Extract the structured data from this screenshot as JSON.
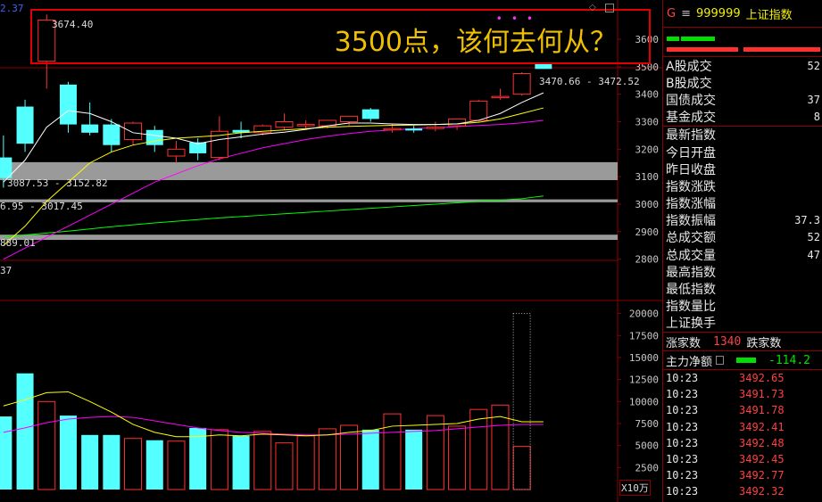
{
  "headline": "3500点，该何去何从？",
  "top_left_fragment": "2.37",
  "annotations": {
    "high_label": "3674.40",
    "price_range": "3470.66 - 3472.52",
    "band1": "3087.53 - 3152.82",
    "band2": "6.95 - 3017.45",
    "low_label": "889.01",
    "divider_fragment": "37",
    "volume_unit": "X10万"
  },
  "panel": {
    "g_label": "G",
    "menu_glyph": "≡",
    "code": "999999",
    "name": "上证指数",
    "stats": [
      {
        "label": "A股成交",
        "value": "52"
      },
      {
        "label": "B股成交",
        "value": ""
      },
      {
        "label": "国债成交",
        "value": "37"
      },
      {
        "label": "基金成交",
        "value": "8"
      }
    ],
    "stats2": [
      {
        "label": "最新指数",
        "value": ""
      },
      {
        "label": "今日开盘",
        "value": ""
      },
      {
        "label": "昨日收盘",
        "value": ""
      },
      {
        "label": "指数涨跌",
        "value": ""
      },
      {
        "label": "指数涨幅",
        "value": ""
      },
      {
        "label": "指数振幅",
        "value": "37.3"
      },
      {
        "label": "总成交额",
        "value": "52"
      },
      {
        "label": "总成交量",
        "value": "47"
      },
      {
        "label": "最高指数",
        "value": ""
      },
      {
        "label": "最低指数",
        "value": ""
      },
      {
        "label": "指数量比",
        "value": ""
      },
      {
        "label": "上证换手",
        "value": ""
      }
    ],
    "advancers_label": "涨家数",
    "advancers": "1340",
    "decliners_label": "跌家数",
    "main_flow_label": "主力净额",
    "main_flow": "-114.2",
    "ticks": [
      {
        "time": "10:23",
        "price": "3492.65"
      },
      {
        "time": "10:23",
        "price": "3491.73"
      },
      {
        "time": "10:23",
        "price": "3491.78"
      },
      {
        "time": "10:23",
        "price": "3492.41"
      },
      {
        "time": "10:23",
        "price": "3492.48"
      },
      {
        "time": "10:23",
        "price": "3492.45"
      },
      {
        "time": "10:23",
        "price": "3492.77"
      },
      {
        "time": "10:23",
        "price": "3492.32"
      }
    ]
  },
  "colors": {
    "up": "#ff3030",
    "down": "#54ffff",
    "ma5": "#ffffff",
    "ma10": "#ffff00",
    "ma20": "#ff00ff",
    "ma60": "#00ff00",
    "band": "#9a9a9a"
  },
  "chart_data": {
    "type": "candlestick",
    "price_axis": {
      "ticks": [
        3600,
        3500,
        3400,
        3300,
        3200,
        3100,
        3000,
        2900,
        2800
      ]
    },
    "volume_axis": {
      "ticks": [
        20000,
        17500,
        15000,
        12500,
        10000,
        7500,
        5000,
        2500
      ],
      "unit": "X10万"
    },
    "candles": [
      {
        "o": 3170,
        "h": 3250,
        "l": 3060,
        "c": 3095
      },
      {
        "o": 3355,
        "h": 3380,
        "l": 3190,
        "c": 3220
      },
      {
        "o": 3520,
        "h": 3690,
        "l": 3420,
        "c": 3670
      },
      {
        "o": 3435,
        "h": 3445,
        "l": 3260,
        "c": 3290
      },
      {
        "o": 3290,
        "h": 3370,
        "l": 3250,
        "c": 3260
      },
      {
        "o": 3290,
        "h": 3310,
        "l": 3190,
        "c": 3215
      },
      {
        "o": 3235,
        "h": 3300,
        "l": 3215,
        "c": 3295
      },
      {
        "o": 3270,
        "h": 3285,
        "l": 3190,
        "c": 3215
      },
      {
        "o": 3175,
        "h": 3230,
        "l": 3150,
        "c": 3200
      },
      {
        "o": 3225,
        "h": 3240,
        "l": 3160,
        "c": 3185
      },
      {
        "o": 3170,
        "h": 3320,
        "l": 3160,
        "c": 3265
      },
      {
        "o": 3270,
        "h": 3300,
        "l": 3240,
        "c": 3260
      },
      {
        "o": 3260,
        "h": 3290,
        "l": 3250,
        "c": 3285
      },
      {
        "o": 3280,
        "h": 3330,
        "l": 3270,
        "c": 3300
      },
      {
        "o": 3285,
        "h": 3305,
        "l": 3270,
        "c": 3290
      },
      {
        "o": 3285,
        "h": 3305,
        "l": 3275,
        "c": 3305
      },
      {
        "o": 3300,
        "h": 3320,
        "l": 3285,
        "c": 3320
      },
      {
        "o": 3345,
        "h": 3350,
        "l": 3300,
        "c": 3310
      },
      {
        "o": 3275,
        "h": 3290,
        "l": 3260,
        "c": 3275
      },
      {
        "o": 3275,
        "h": 3285,
        "l": 3260,
        "c": 3268
      },
      {
        "o": 3280,
        "h": 3300,
        "l": 3265,
        "c": 3280
      },
      {
        "o": 3285,
        "h": 3310,
        "l": 3270,
        "c": 3310
      },
      {
        "o": 3305,
        "h": 3380,
        "l": 3300,
        "c": 3375
      },
      {
        "o": 3390,
        "h": 3420,
        "l": 3380,
        "c": 3392
      },
      {
        "o": 3400,
        "h": 3480,
        "l": 3395,
        "c": 3475
      },
      {
        "o": 3510,
        "h": 3512,
        "l": 3492,
        "c": 3492
      }
    ],
    "volume": [
      8300,
      13200,
      10000,
      8400,
      6200,
      6200,
      5800,
      5600,
      5500,
      7000,
      6800,
      6100,
      6600,
      5300,
      6100,
      6900,
      7300,
      6800,
      8600,
      6800,
      8400,
      7200,
      9100,
      9600,
      4900,
      0
    ],
    "volume_top_outline": 20000,
    "ma5": [
      3080,
      3160,
      3280,
      3340,
      3330,
      3300,
      3260,
      3250,
      3240,
      3220,
      3235,
      3245,
      3255,
      3262,
      3272,
      3285,
      3295,
      3295,
      3292,
      3290,
      3290,
      3292,
      3305,
      3330,
      3370,
      3405
    ],
    "ma10": [
      2850,
      2920,
      3010,
      3080,
      3150,
      3190,
      3215,
      3230,
      3240,
      3245,
      3250,
      3260,
      3265,
      3270,
      3275,
      3280,
      3283,
      3285,
      3287,
      3288,
      3290,
      3292,
      3298,
      3310,
      3330,
      3350
    ],
    "ma20": [
      2800,
      2840,
      2880,
      2920,
      2960,
      3000,
      3040,
      3080,
      3110,
      3140,
      3165,
      3185,
      3205,
      3220,
      3235,
      3247,
      3257,
      3265,
      3270,
      3275,
      3278,
      3282,
      3286,
      3290,
      3296,
      3305
    ],
    "ma60": [
      2880,
      2888,
      2895,
      2902,
      2910,
      2918,
      2925,
      2932,
      2938,
      2944,
      2950,
      2955,
      2960,
      2965,
      2970,
      2975,
      2980,
      2985,
      2990,
      2995,
      3000,
      3005,
      3010,
      3015,
      3020,
      3030
    ],
    "vol_ma5": [
      9500,
      10200,
      11000,
      11100,
      10000,
      8800,
      7400,
      6500,
      6000,
      6000,
      6200,
      6100,
      6300,
      6200,
      6100,
      6200,
      6500,
      6700,
      7200,
      7300,
      7400,
      7500,
      8000,
      8300,
      7700,
      7700
    ],
    "vol_ma10": [
      6500,
      7000,
      7600,
      8000,
      8200,
      8300,
      8200,
      7800,
      7400,
      7000,
      6700,
      6500,
      6400,
      6300,
      6200,
      6200,
      6300,
      6400,
      6500,
      6600,
      6700,
      6900,
      7100,
      7300,
      7400,
      7400
    ],
    "bands": [
      {
        "low": 3087.53,
        "high": 3152.82
      },
      {
        "low": 3006.95,
        "high": 3017.45
      },
      {
        "low": 2870,
        "high": 2889.01
      }
    ]
  }
}
